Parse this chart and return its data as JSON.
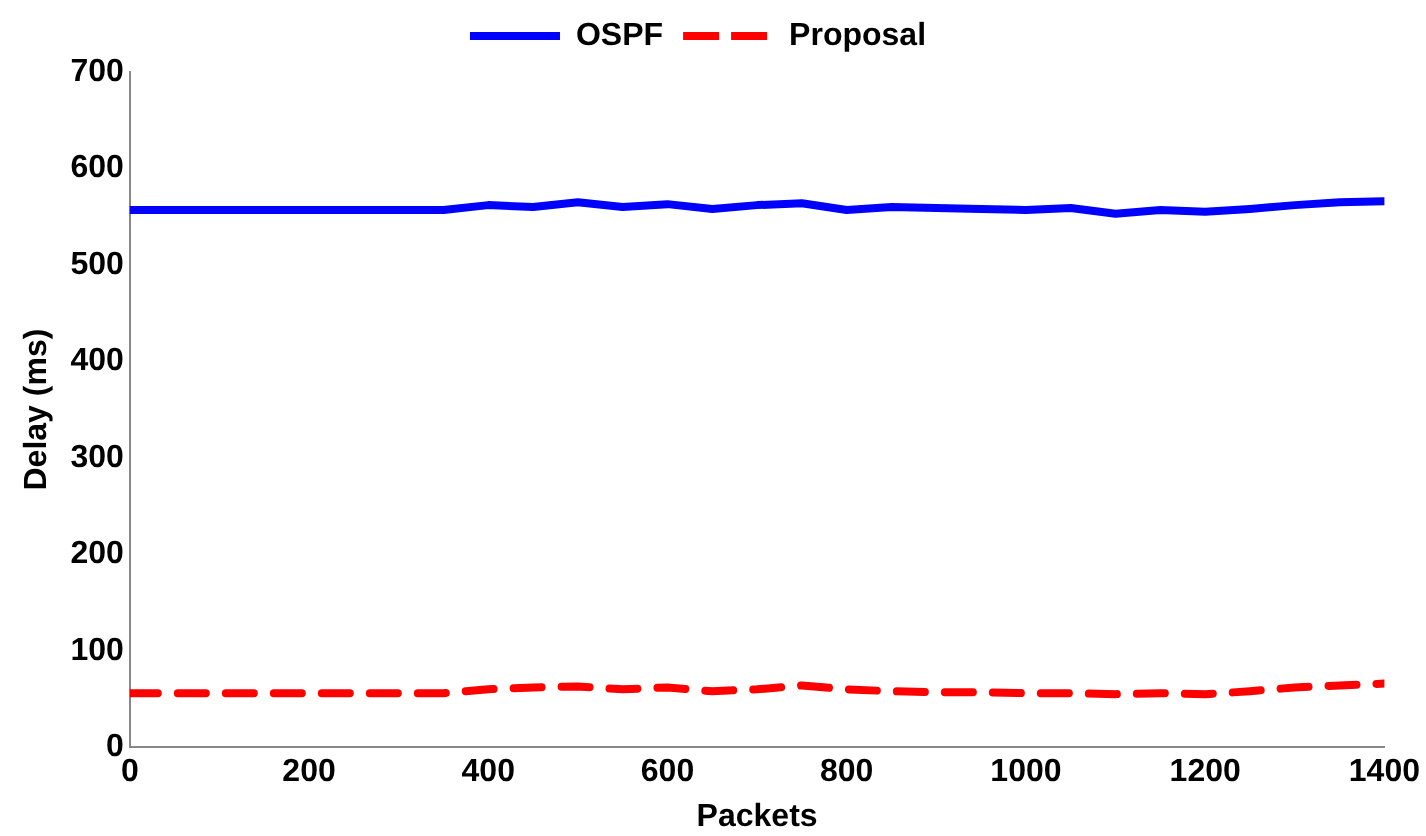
{
  "chart_data": {
    "type": "line",
    "xlabel": "Packets",
    "ylabel": "Delay (ms)",
    "x": [
      0,
      50,
      100,
      150,
      200,
      250,
      300,
      350,
      400,
      450,
      500,
      550,
      600,
      650,
      700,
      750,
      800,
      850,
      900,
      950,
      1000,
      1050,
      1100,
      1150,
      1200,
      1250,
      1300,
      1350,
      1400
    ],
    "series": [
      {
        "name": "OSPF",
        "color": "#0000ff",
        "line_style": "solid",
        "values": [
          557,
          557,
          557,
          557,
          557,
          557,
          557,
          557,
          562,
          560,
          565,
          560,
          563,
          558,
          562,
          564,
          557,
          560,
          559,
          558,
          557,
          559,
          553,
          557,
          555,
          558,
          562,
          565,
          566
        ]
      },
      {
        "name": "Proposal",
        "color": "#ff0000",
        "line_style": "dashed",
        "values": [
          56,
          56,
          56,
          56,
          56,
          56,
          56,
          56,
          60,
          62,
          63,
          60,
          62,
          58,
          60,
          64,
          60,
          58,
          57,
          57,
          56,
          56,
          55,
          56,
          55,
          58,
          62,
          64,
          66
        ]
      }
    ],
    "xlim": [
      0,
      1400
    ],
    "xticks": [
      0,
      200,
      400,
      600,
      800,
      1000,
      1200,
      1400
    ],
    "ylim": [
      0,
      700
    ],
    "yticks": [
      0,
      100,
      200,
      300,
      400,
      500,
      600,
      700
    ],
    "grid": false,
    "legend": "top",
    "marker": "none"
  }
}
